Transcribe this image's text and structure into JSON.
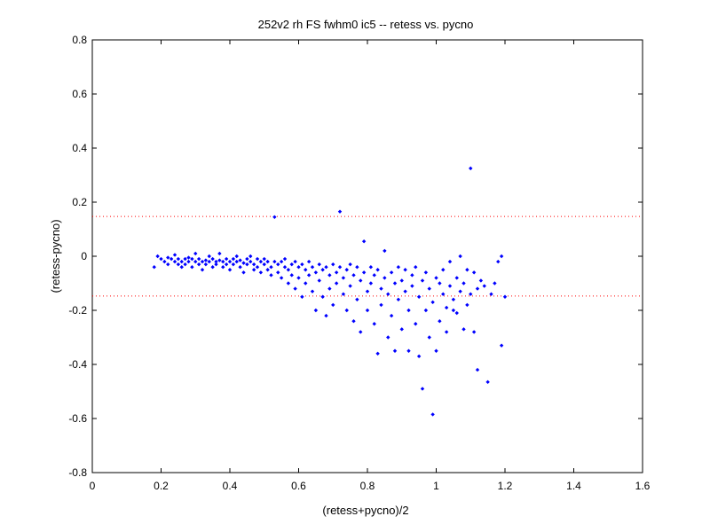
{
  "chart_data": {
    "type": "scatter",
    "title": "252v2 rh FS fwhm0 ic5 -- retess vs. pycno",
    "xlabel": "(retess+pycno)/2",
    "ylabel": "(retess-pycno)",
    "xlim": [
      0,
      1.6
    ],
    "ylim": [
      -0.8,
      0.8
    ],
    "xticks": [
      0,
      0.2,
      0.4,
      0.6,
      0.8,
      1,
      1.2,
      1.4,
      1.6
    ],
    "xtick_labels": [
      "0",
      "0.2",
      "0.4",
      "0.6",
      "0.8",
      "1",
      "1.2",
      "1.4",
      "1.6"
    ],
    "yticks": [
      -0.8,
      -0.6,
      -0.4,
      -0.2,
      0,
      0.2,
      0.4,
      0.6,
      0.8
    ],
    "ytick_labels": [
      "-0.8",
      "-0.6",
      "-0.4",
      "-0.2",
      "0",
      "0.2",
      "0.4",
      "0.6",
      "0.8"
    ],
    "grid": false,
    "colors": {
      "points": "#0000ff",
      "reference_lines": "#ff0000",
      "axes": "#000000"
    },
    "reference_lines": [
      {
        "y": 0.147,
        "style": "dotted"
      },
      {
        "y": -0.147,
        "style": "dotted"
      }
    ],
    "series": [
      {
        "marker": "dot",
        "points": [
          [
            0.18,
            -0.04
          ],
          [
            0.19,
            0.0
          ],
          [
            0.2,
            -0.01
          ],
          [
            0.21,
            -0.02
          ],
          [
            0.22,
            -0.005
          ],
          [
            0.22,
            -0.03
          ],
          [
            0.23,
            -0.01
          ],
          [
            0.24,
            0.005
          ],
          [
            0.24,
            -0.02
          ],
          [
            0.25,
            -0.03
          ],
          [
            0.25,
            -0.01
          ],
          [
            0.26,
            -0.02
          ],
          [
            0.26,
            -0.04
          ],
          [
            0.27,
            -0.01
          ],
          [
            0.27,
            -0.03
          ],
          [
            0.28,
            -0.005
          ],
          [
            0.28,
            -0.02
          ],
          [
            0.29,
            -0.04
          ],
          [
            0.29,
            -0.01
          ],
          [
            0.3,
            -0.02
          ],
          [
            0.3,
            0.01
          ],
          [
            0.31,
            -0.03
          ],
          [
            0.31,
            -0.01
          ],
          [
            0.32,
            -0.02
          ],
          [
            0.32,
            -0.05
          ],
          [
            0.33,
            -0.015
          ],
          [
            0.33,
            -0.03
          ],
          [
            0.34,
            0.0
          ],
          [
            0.34,
            -0.02
          ],
          [
            0.35,
            -0.04
          ],
          [
            0.35,
            -0.01
          ],
          [
            0.36,
            -0.02
          ],
          [
            0.36,
            -0.03
          ],
          [
            0.37,
            0.01
          ],
          [
            0.37,
            -0.015
          ],
          [
            0.38,
            -0.02
          ],
          [
            0.38,
            -0.04
          ],
          [
            0.39,
            -0.01
          ],
          [
            0.39,
            -0.03
          ],
          [
            0.4,
            -0.02
          ],
          [
            0.4,
            -0.05
          ],
          [
            0.41,
            -0.01
          ],
          [
            0.41,
            -0.03
          ],
          [
            0.42,
            0.0
          ],
          [
            0.42,
            -0.02
          ],
          [
            0.43,
            -0.04
          ],
          [
            0.43,
            -0.015
          ],
          [
            0.44,
            -0.025
          ],
          [
            0.44,
            -0.06
          ],
          [
            0.45,
            -0.01
          ],
          [
            0.45,
            -0.03
          ],
          [
            0.46,
            0.0
          ],
          [
            0.46,
            -0.02
          ],
          [
            0.47,
            -0.05
          ],
          [
            0.47,
            -0.03
          ],
          [
            0.48,
            -0.01
          ],
          [
            0.48,
            -0.04
          ],
          [
            0.49,
            -0.02
          ],
          [
            0.49,
            -0.06
          ],
          [
            0.5,
            -0.01
          ],
          [
            0.5,
            -0.03
          ],
          [
            0.51,
            -0.05
          ],
          [
            0.51,
            -0.02
          ],
          [
            0.52,
            -0.04
          ],
          [
            0.52,
            -0.07
          ],
          [
            0.53,
            -0.02
          ],
          [
            0.53,
            0.145
          ],
          [
            0.54,
            -0.03
          ],
          [
            0.54,
            -0.06
          ],
          [
            0.55,
            -0.02
          ],
          [
            0.55,
            -0.08
          ],
          [
            0.56,
            -0.04
          ],
          [
            0.56,
            -0.01
          ],
          [
            0.57,
            -0.05
          ],
          [
            0.57,
            -0.1
          ],
          [
            0.58,
            -0.03
          ],
          [
            0.58,
            -0.07
          ],
          [
            0.59,
            -0.02
          ],
          [
            0.59,
            -0.12
          ],
          [
            0.6,
            -0.04
          ],
          [
            0.6,
            -0.08
          ],
          [
            0.61,
            -0.03
          ],
          [
            0.61,
            -0.15
          ],
          [
            0.62,
            -0.05
          ],
          [
            0.62,
            -0.1
          ],
          [
            0.63,
            -0.02
          ],
          [
            0.63,
            -0.07
          ],
          [
            0.64,
            -0.04
          ],
          [
            0.64,
            -0.13
          ],
          [
            0.65,
            -0.06
          ],
          [
            0.65,
            -0.2
          ],
          [
            0.66,
            -0.03
          ],
          [
            0.66,
            -0.09
          ],
          [
            0.67,
            -0.05
          ],
          [
            0.67,
            -0.15
          ],
          [
            0.68,
            -0.04
          ],
          [
            0.68,
            -0.22
          ],
          [
            0.69,
            -0.07
          ],
          [
            0.69,
            -0.12
          ],
          [
            0.7,
            -0.03
          ],
          [
            0.7,
            -0.18
          ],
          [
            0.71,
            -0.06
          ],
          [
            0.71,
            -0.1
          ],
          [
            0.72,
            0.165
          ],
          [
            0.72,
            -0.04
          ],
          [
            0.73,
            -0.14
          ],
          [
            0.73,
            -0.08
          ],
          [
            0.74,
            -0.05
          ],
          [
            0.74,
            -0.2
          ],
          [
            0.75,
            -0.03
          ],
          [
            0.75,
            -0.11
          ],
          [
            0.76,
            -0.07
          ],
          [
            0.76,
            -0.24
          ],
          [
            0.77,
            -0.04
          ],
          [
            0.77,
            -0.16
          ],
          [
            0.78,
            -0.09
          ],
          [
            0.78,
            -0.28
          ],
          [
            0.79,
            0.055
          ],
          [
            0.79,
            -0.06
          ],
          [
            0.8,
            -0.13
          ],
          [
            0.8,
            -0.2
          ],
          [
            0.81,
            -0.04
          ],
          [
            0.81,
            -0.1
          ],
          [
            0.82,
            -0.07
          ],
          [
            0.82,
            -0.25
          ],
          [
            0.83,
            -0.05
          ],
          [
            0.83,
            -0.36
          ],
          [
            0.84,
            -0.12
          ],
          [
            0.84,
            -0.18
          ],
          [
            0.85,
            0.02
          ],
          [
            0.85,
            -0.08
          ],
          [
            0.86,
            -0.3
          ],
          [
            0.86,
            -0.14
          ],
          [
            0.87,
            -0.06
          ],
          [
            0.87,
            -0.22
          ],
          [
            0.88,
            -0.1
          ],
          [
            0.88,
            -0.35
          ],
          [
            0.89,
            -0.04
          ],
          [
            0.89,
            -0.16
          ],
          [
            0.9,
            -0.09
          ],
          [
            0.9,
            -0.27
          ],
          [
            0.91,
            -0.05
          ],
          [
            0.91,
            -0.13
          ],
          [
            0.92,
            -0.2
          ],
          [
            0.92,
            -0.35
          ],
          [
            0.93,
            -0.07
          ],
          [
            0.93,
            -0.11
          ],
          [
            0.94,
            -0.25
          ],
          [
            0.94,
            -0.04
          ],
          [
            0.95,
            -0.15
          ],
          [
            0.95,
            -0.37
          ],
          [
            0.96,
            -0.49
          ],
          [
            0.96,
            -0.09
          ],
          [
            0.97,
            -0.2
          ],
          [
            0.97,
            -0.06
          ],
          [
            0.98,
            -0.3
          ],
          [
            0.98,
            -0.12
          ],
          [
            0.99,
            -0.585
          ],
          [
            0.99,
            -0.17
          ],
          [
            1.0,
            -0.08
          ],
          [
            1.0,
            -0.35
          ],
          [
            1.01,
            -0.24
          ],
          [
            1.01,
            -0.1
          ],
          [
            1.02,
            -0.14
          ],
          [
            1.02,
            -0.05
          ],
          [
            1.03,
            -0.28
          ],
          [
            1.03,
            -0.19
          ],
          [
            1.04,
            -0.11
          ],
          [
            1.04,
            -0.02
          ],
          [
            1.05,
            -0.2
          ],
          [
            1.05,
            -0.16
          ],
          [
            1.06,
            -0.21
          ],
          [
            1.06,
            -0.08
          ],
          [
            1.07,
            -0.13
          ],
          [
            1.07,
            0.0
          ],
          [
            1.08,
            -0.27
          ],
          [
            1.08,
            -0.1
          ],
          [
            1.09,
            -0.05
          ],
          [
            1.09,
            -0.18
          ],
          [
            1.1,
            0.325
          ],
          [
            1.1,
            -0.14
          ],
          [
            1.11,
            -0.28
          ],
          [
            1.11,
            -0.06
          ],
          [
            1.12,
            -0.42
          ],
          [
            1.12,
            -0.12
          ],
          [
            1.13,
            -0.09
          ],
          [
            1.14,
            -0.11
          ],
          [
            1.15,
            -0.465
          ],
          [
            1.16,
            -0.14
          ],
          [
            1.17,
            -0.1
          ],
          [
            1.18,
            -0.02
          ],
          [
            1.19,
            -0.33
          ],
          [
            1.19,
            0.0
          ],
          [
            1.2,
            -0.15
          ]
        ]
      }
    ]
  }
}
